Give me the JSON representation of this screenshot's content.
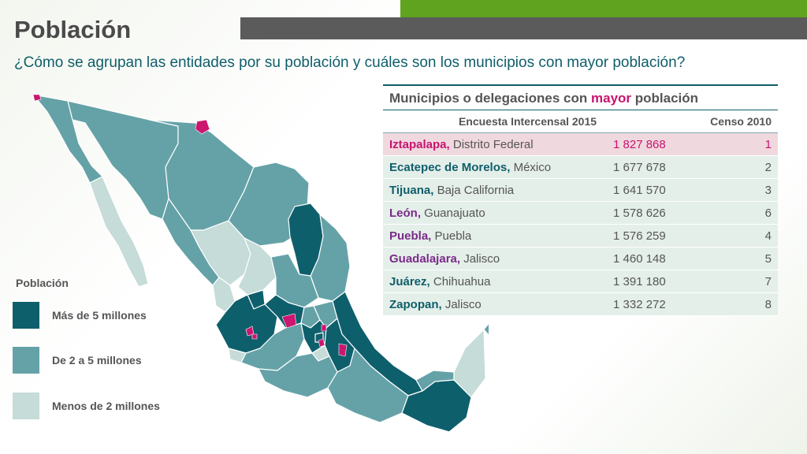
{
  "header": {
    "title": "Población",
    "subtitle": "¿Cómo se agrupan las entidades por su población y cuáles son los municipios con mayor población?"
  },
  "colors": {
    "dark": "#0e5f6c",
    "mid": "#65a2a8",
    "light": "#c5dcd8",
    "highlight": "#cc1670",
    "accent_green": "#5fa31e",
    "bar_gray": "#5b5b5b"
  },
  "legend": {
    "title": "Población",
    "items": [
      {
        "label": "Más de 5 millones",
        "color": "#0e5f6c"
      },
      {
        "label": "De 2 a 5 millones",
        "color": "#65a2a8"
      },
      {
        "label": "Menos de 2 millones",
        "color": "#c5dcd8"
      }
    ]
  },
  "table": {
    "title_pre": "Municipios o delegaciones con ",
    "title_highlight": "mayor",
    "title_post": " población",
    "col1": "Encuesta Intercensal 2015",
    "col2": "Censo 2010",
    "rows": [
      {
        "name": "Iztapalapa,",
        "state": "Distrito Federal",
        "value": "1 827 868",
        "rank": "1"
      },
      {
        "name": "Ecatepec de Morelos,",
        "state": "México",
        "value": "1 677 678",
        "rank": "2"
      },
      {
        "name": "Tijuana,",
        "state": "Baja California",
        "value": "1 641 570",
        "rank": "3"
      },
      {
        "name": "León,",
        "state": "Guanajuato",
        "value": "1 578 626",
        "rank": "6"
      },
      {
        "name": "Puebla,",
        "state": "Puebla",
        "value": "1 576 259",
        "rank": "4"
      },
      {
        "name": "Guadalajara,",
        "state": "Jalisco",
        "value": "1 460 148",
        "rank": "5"
      },
      {
        "name": "Juárez,",
        "state": "Chihuahua",
        "value": "1 391 180",
        "rank": "7"
      },
      {
        "name": "Zapopan,",
        "state": "Jalisco",
        "value": "1 332 272",
        "rank": "8"
      }
    ]
  }
}
